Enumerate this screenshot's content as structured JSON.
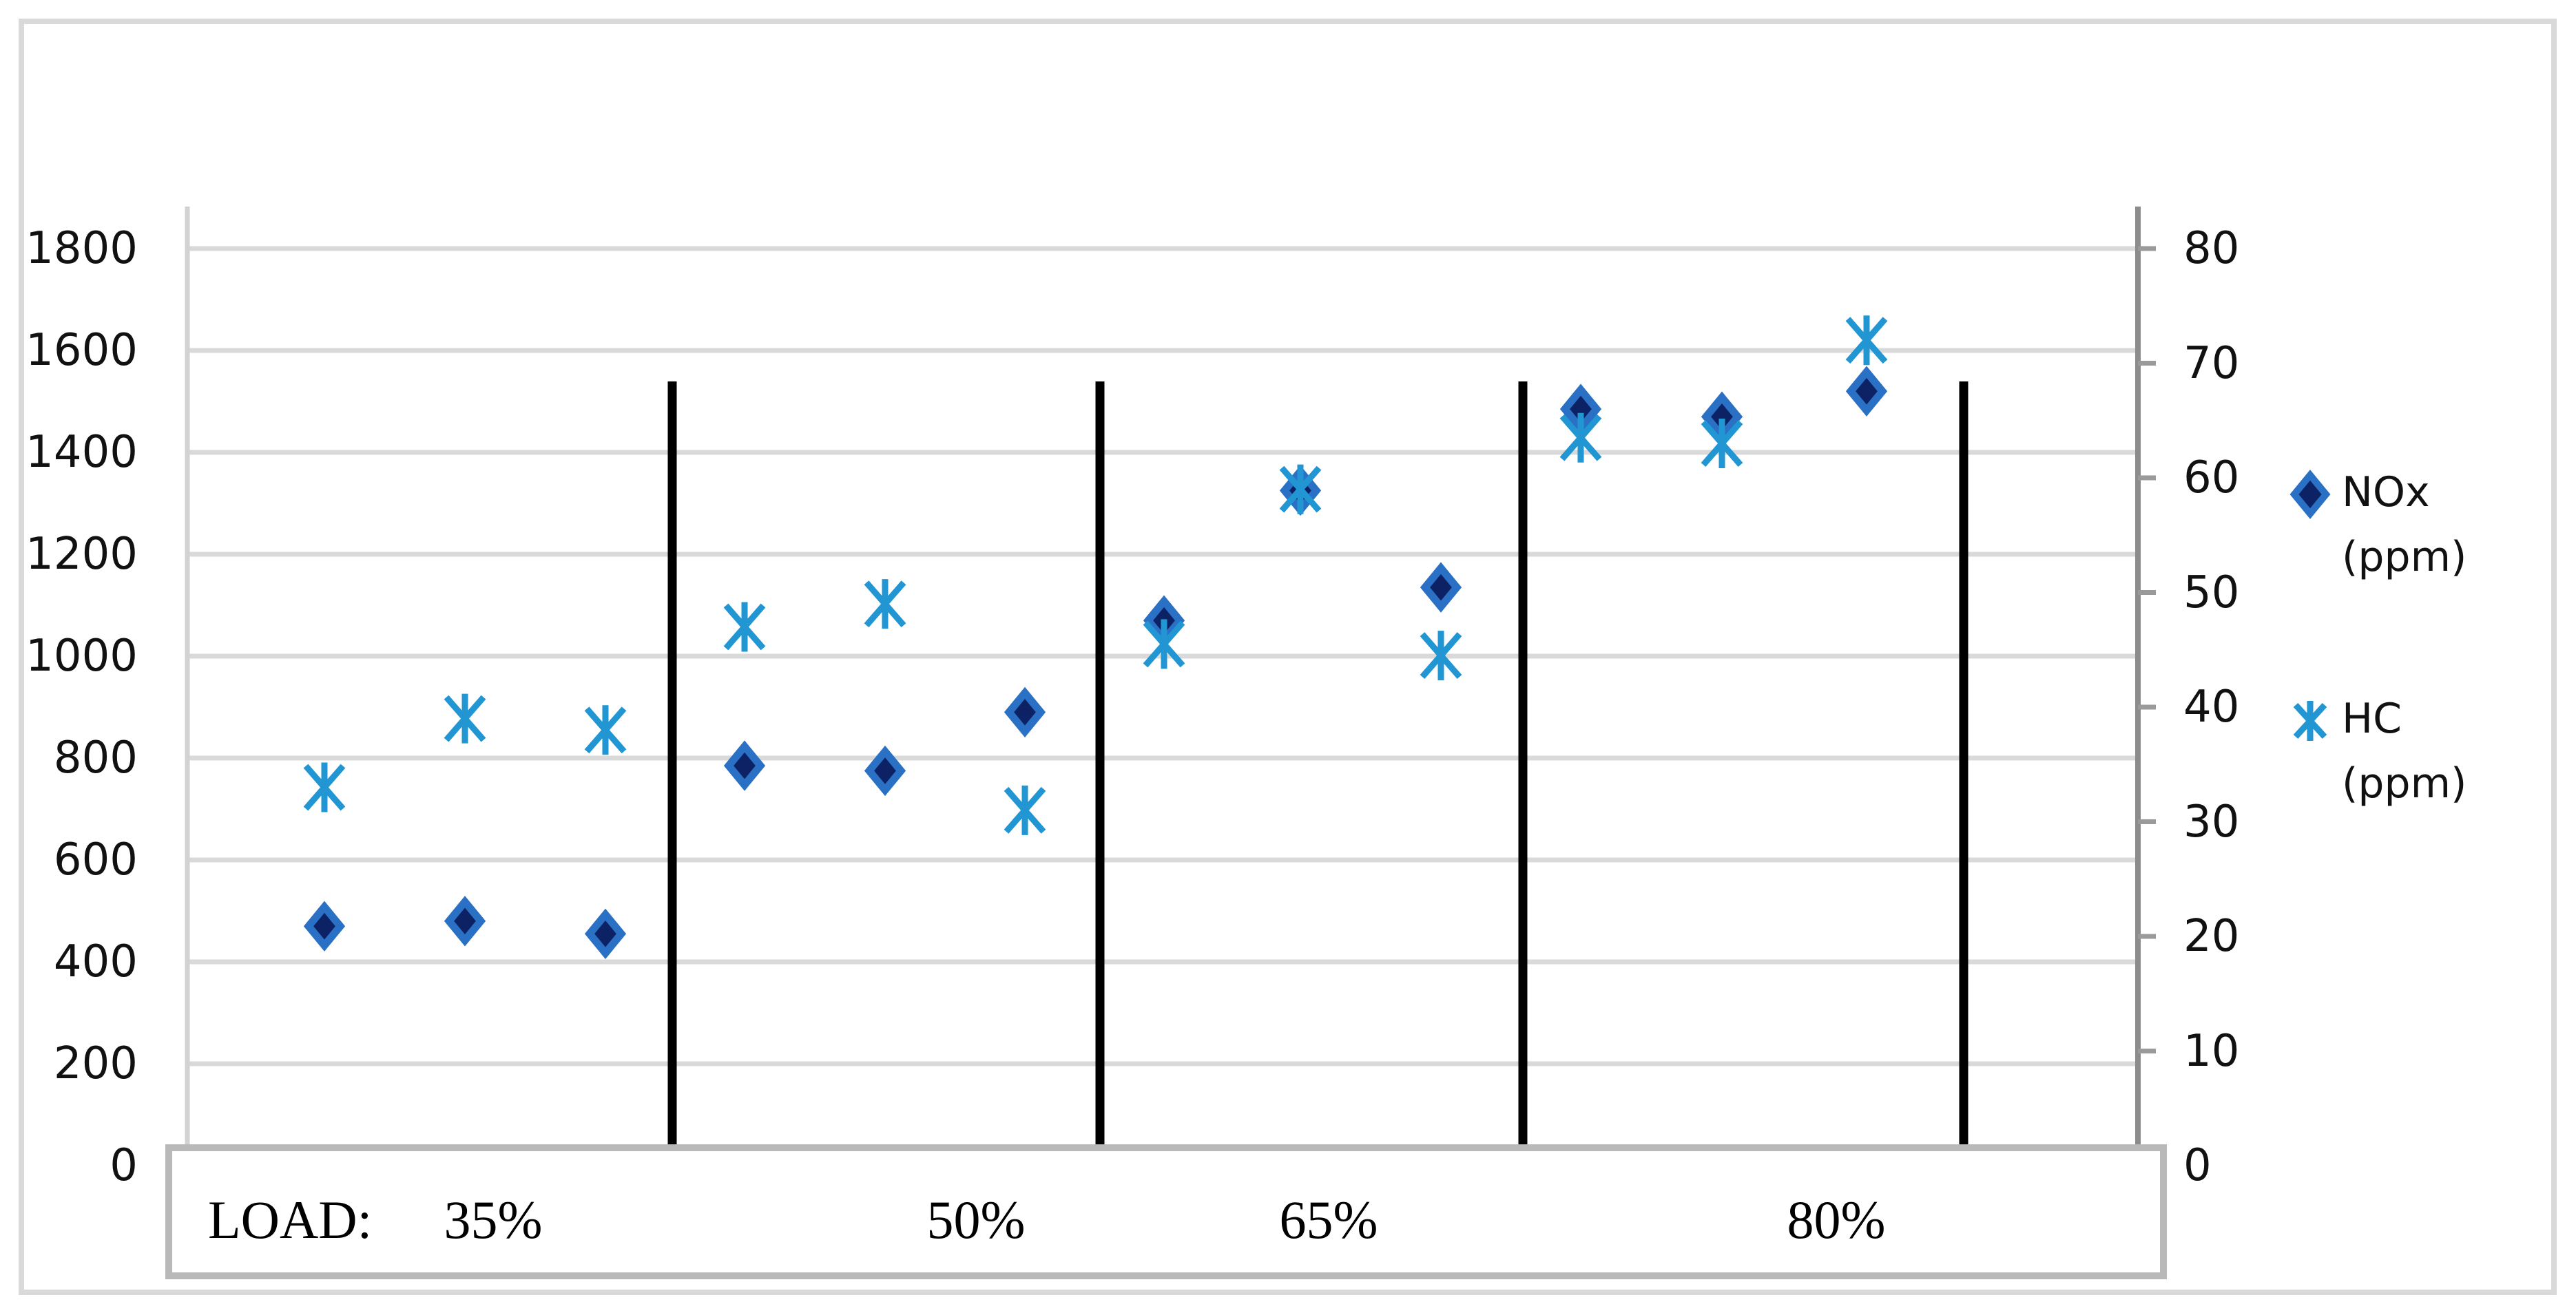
{
  "figure": {
    "description": "Dual-axis scatter chart of NOx and HC emissions (ppm) at four engine load levels"
  },
  "left_axis": {
    "labels": [
      "1800",
      "1600",
      "1400",
      "1200",
      "1000",
      "800",
      "600",
      "400",
      "200",
      "0"
    ],
    "min": 0,
    "max": 1800,
    "step": 200
  },
  "right_axis": {
    "labels": [
      "80",
      "70",
      "60",
      "50",
      "40",
      "30",
      "20",
      "10",
      "0"
    ],
    "min": 0,
    "max": 80,
    "step": 10
  },
  "x_axis": {
    "prefix": "LOAD:",
    "categories": [
      "35%",
      "50%",
      "65%",
      "80%"
    ]
  },
  "legend": {
    "items": [
      {
        "id": "nox",
        "lines": [
          "NOx",
          "(ppm)"
        ]
      },
      {
        "id": "hc",
        "lines": [
          "HC",
          "(ppm)"
        ]
      }
    ]
  },
  "colors": {
    "nox_fill": "#0d2264",
    "nox_stroke": "#2a70c4",
    "hc": "#2196d3",
    "gridline": "#d9d9d9",
    "left_axis_line": "#d2d2d2",
    "right_axis_line": "#8c8c8c",
    "right_axis_tick": "#9a9a9a",
    "divider": "#000000"
  },
  "chart_data": {
    "type": "scatter",
    "dual_axis": true,
    "title": "",
    "xlabel": "LOAD",
    "left_ylabel": "NOx (ppm)",
    "right_ylabel": "HC (ppm)",
    "left_ylim": [
      0,
      1800
    ],
    "right_ylim": [
      0,
      80
    ],
    "grid": "horizontal",
    "legend_position": "right",
    "points_per_group": 3,
    "groups": [
      {
        "load": "35%",
        "NOx_ppm": [
          470,
          480,
          455
        ],
        "HC_ppm": [
          33,
          39,
          38
        ]
      },
      {
        "load": "50%",
        "NOx_ppm": [
          785,
          775,
          890
        ],
        "HC_ppm": [
          47,
          49,
          31
        ]
      },
      {
        "load": "65%",
        "NOx_ppm": [
          1070,
          1325,
          1135
        ],
        "HC_ppm": [
          45.5,
          59,
          44.5
        ]
      },
      {
        "load": "80%",
        "NOx_ppm": [
          1485,
          1470,
          1520
        ],
        "HC_ppm": [
          63.5,
          63,
          72
        ]
      }
    ],
    "series": [
      {
        "name": "NOx (ppm)",
        "axis": "left",
        "marker": "diamond",
        "values": [
          470,
          480,
          455,
          785,
          775,
          890,
          1070,
          1325,
          1135,
          1485,
          1470,
          1520
        ]
      },
      {
        "name": "HC (ppm)",
        "axis": "right",
        "marker": "asterisk",
        "values": [
          33,
          39,
          38,
          47,
          49,
          31,
          45.5,
          59,
          44.5,
          63.5,
          63,
          72
        ]
      }
    ]
  }
}
